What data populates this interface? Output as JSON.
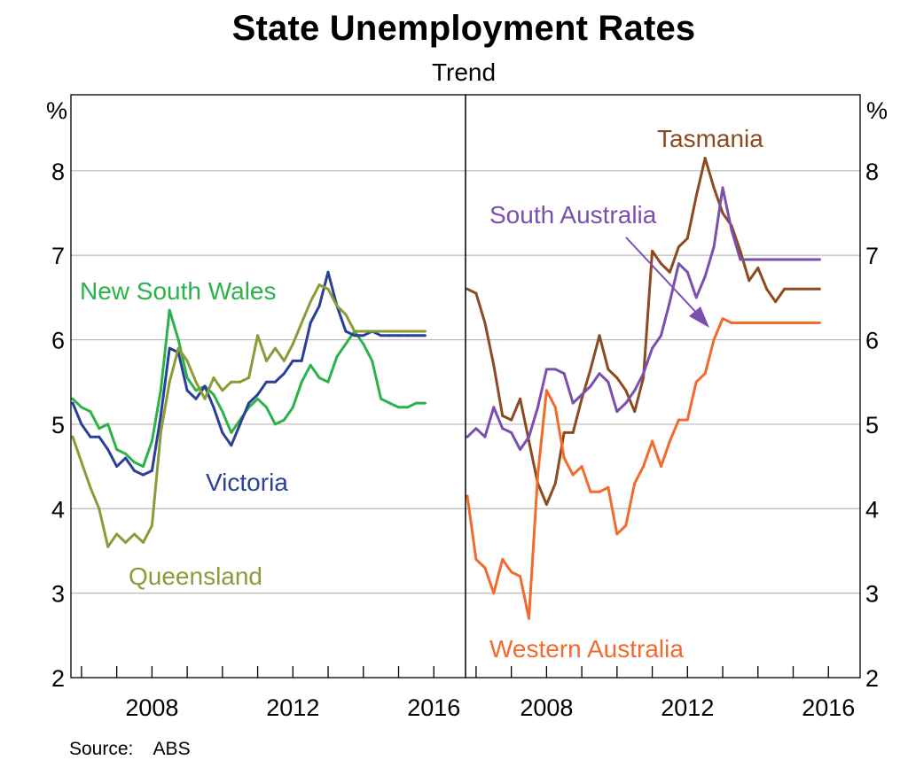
{
  "chart_data": {
    "title": "State Unemployment Rates",
    "subtitle": "Trend",
    "source": "Source:    ABS",
    "type": "line",
    "y_unit": "%",
    "ylim": [
      2,
      8.9
    ],
    "y_ticks": [
      2,
      3,
      4,
      5,
      6,
      7,
      8
    ],
    "x_ticks": [
      2008,
      2012,
      2016
    ],
    "xlim": [
      2005.7,
      2016.9
    ],
    "grid": true,
    "panels": [
      {
        "series": [
          {
            "name": "New South Wales",
            "color": "#2bb34a",
            "x": [
              2005.75,
              2006.0,
              2006.25,
              2006.5,
              2006.75,
              2007.0,
              2007.25,
              2007.5,
              2007.75,
              2008.0,
              2008.25,
              2008.5,
              2008.75,
              2009.0,
              2009.25,
              2009.5,
              2009.75,
              2010.0,
              2010.25,
              2010.5,
              2010.75,
              2011.0,
              2011.25,
              2011.5,
              2011.75,
              2012.0,
              2012.25,
              2012.5,
              2012.75,
              2013.0,
              2013.25,
              2013.5,
              2013.75,
              2014.0,
              2014.25,
              2014.5,
              2014.75,
              2015.0,
              2015.25,
              2015.5,
              2015.75
            ],
            "y": [
              5.3,
              5.2,
              5.15,
              4.95,
              5.0,
              4.7,
              4.65,
              4.55,
              4.5,
              4.8,
              5.4,
              6.35,
              6.0,
              5.55,
              5.4,
              5.45,
              5.35,
              5.15,
              4.9,
              5.05,
              5.2,
              5.3,
              5.2,
              5.0,
              5.05,
              5.2,
              5.5,
              5.7,
              5.55,
              5.5,
              5.8,
              5.95,
              6.1,
              5.95,
              5.75,
              5.3,
              5.25,
              5.2,
              5.2,
              5.25,
              5.25
            ]
          },
          {
            "name": "Victoria",
            "color": "#2a3f98",
            "x": [
              2005.75,
              2006.0,
              2006.25,
              2006.5,
              2006.75,
              2007.0,
              2007.25,
              2007.5,
              2007.75,
              2008.0,
              2008.25,
              2008.5,
              2008.75,
              2009.0,
              2009.25,
              2009.5,
              2009.75,
              2010.0,
              2010.25,
              2010.5,
              2010.75,
              2011.0,
              2011.25,
              2011.5,
              2011.75,
              2012.0,
              2012.25,
              2012.5,
              2012.75,
              2013.0,
              2013.25,
              2013.5,
              2013.75,
              2014.0,
              2014.25,
              2014.5,
              2014.75,
              2015.0,
              2015.25,
              2015.5,
              2015.75
            ],
            "y": [
              5.25,
              5.0,
              4.85,
              4.85,
              4.7,
              4.5,
              4.6,
              4.45,
              4.4,
              4.45,
              5.1,
              5.9,
              5.85,
              5.4,
              5.3,
              5.45,
              5.2,
              4.9,
              4.75,
              5.0,
              5.25,
              5.35,
              5.5,
              5.5,
              5.6,
              5.75,
              5.75,
              6.2,
              6.4,
              6.8,
              6.4,
              6.1,
              6.05,
              6.05,
              6.1,
              6.05,
              6.05,
              6.05,
              6.05,
              6.05,
              6.05
            ]
          },
          {
            "name": "Queensland",
            "color": "#8a9b38",
            "x": [
              2005.75,
              2006.0,
              2006.25,
              2006.5,
              2006.75,
              2007.0,
              2007.25,
              2007.5,
              2007.75,
              2008.0,
              2008.25,
              2008.5,
              2008.75,
              2009.0,
              2009.25,
              2009.5,
              2009.75,
              2010.0,
              2010.25,
              2010.5,
              2010.75,
              2011.0,
              2011.25,
              2011.5,
              2011.75,
              2012.0,
              2012.25,
              2012.5,
              2012.75,
              2013.0,
              2013.25,
              2013.5,
              2013.75,
              2014.0,
              2014.25,
              2014.5,
              2014.75,
              2015.0,
              2015.25,
              2015.5,
              2015.75
            ],
            "y": [
              4.85,
              4.55,
              4.25,
              4.0,
              3.55,
              3.7,
              3.6,
              3.7,
              3.6,
              3.8,
              4.9,
              5.5,
              5.9,
              5.75,
              5.5,
              5.3,
              5.55,
              5.4,
              5.5,
              5.5,
              5.55,
              6.05,
              5.75,
              5.9,
              5.75,
              5.95,
              6.2,
              6.45,
              6.65,
              6.6,
              6.4,
              6.3,
              6.1,
              6.1,
              6.1,
              6.1,
              6.1,
              6.1,
              6.1,
              6.1,
              6.1
            ]
          }
        ]
      },
      {
        "series": [
          {
            "name": "Tasmania",
            "color": "#8b4a1f",
            "x": [
              2005.75,
              2006.0,
              2006.25,
              2006.5,
              2006.75,
              2007.0,
              2007.25,
              2007.5,
              2007.75,
              2008.0,
              2008.25,
              2008.5,
              2008.75,
              2009.0,
              2009.25,
              2009.5,
              2009.75,
              2010.0,
              2010.25,
              2010.5,
              2010.75,
              2011.0,
              2011.25,
              2011.5,
              2011.75,
              2012.0,
              2012.25,
              2012.5,
              2012.75,
              2013.0,
              2013.25,
              2013.5,
              2013.75,
              2014.0,
              2014.25,
              2014.5,
              2014.75,
              2015.0,
              2015.25,
              2015.5,
              2015.75
            ],
            "y": [
              6.6,
              6.55,
              6.2,
              5.7,
              5.1,
              5.05,
              5.3,
              4.8,
              4.3,
              4.05,
              4.3,
              4.9,
              4.9,
              5.3,
              5.65,
              6.05,
              5.65,
              5.55,
              5.4,
              5.15,
              5.55,
              7.05,
              6.9,
              6.8,
              7.1,
              7.2,
              7.7,
              8.15,
              7.8,
              7.5,
              7.35,
              7.05,
              6.7,
              6.85,
              6.6,
              6.45,
              6.6,
              6.6,
              6.6,
              6.6,
              6.6
            ]
          },
          {
            "name": "South Australia",
            "color": "#7a4fb0",
            "x": [
              2005.75,
              2006.0,
              2006.25,
              2006.5,
              2006.75,
              2007.0,
              2007.25,
              2007.5,
              2007.75,
              2008.0,
              2008.25,
              2008.5,
              2008.75,
              2009.0,
              2009.25,
              2009.5,
              2009.75,
              2010.0,
              2010.25,
              2010.5,
              2010.75,
              2011.0,
              2011.25,
              2011.5,
              2011.75,
              2012.0,
              2012.25,
              2012.5,
              2012.75,
              2013.0,
              2013.25,
              2013.5,
              2013.75,
              2014.0,
              2014.25,
              2014.5,
              2014.75,
              2015.0,
              2015.25,
              2015.5,
              2015.75
            ],
            "y": [
              4.85,
              4.95,
              4.85,
              5.2,
              4.95,
              4.9,
              4.7,
              4.85,
              5.2,
              5.65,
              5.65,
              5.6,
              5.25,
              5.35,
              5.45,
              5.6,
              5.5,
              5.15,
              5.25,
              5.4,
              5.6,
              5.9,
              6.05,
              6.45,
              6.9,
              6.8,
              6.5,
              6.75,
              7.1,
              7.8,
              7.3,
              6.95,
              6.95,
              6.95,
              6.95,
              6.95,
              6.95,
              6.95,
              6.95,
              6.95,
              6.95
            ]
          },
          {
            "name": "Western Australia",
            "color": "#f26a2c",
            "x": [
              2005.75,
              2006.0,
              2006.25,
              2006.5,
              2006.75,
              2007.0,
              2007.25,
              2007.5,
              2007.75,
              2008.0,
              2008.25,
              2008.5,
              2008.75,
              2009.0,
              2009.25,
              2009.5,
              2009.75,
              2010.0,
              2010.25,
              2010.5,
              2010.75,
              2011.0,
              2011.25,
              2011.5,
              2011.75,
              2012.0,
              2012.25,
              2012.5,
              2012.75,
              2013.0,
              2013.25,
              2013.5,
              2013.75,
              2014.0,
              2014.25,
              2014.5,
              2014.75,
              2015.0,
              2015.25,
              2015.5,
              2015.75
            ],
            "y": [
              4.15,
              3.4,
              3.3,
              3.0,
              3.4,
              3.25,
              3.2,
              2.7,
              4.4,
              5.4,
              5.2,
              4.6,
              4.4,
              4.5,
              4.2,
              4.2,
              4.25,
              3.7,
              3.8,
              4.3,
              4.5,
              4.8,
              4.5,
              4.8,
              5.05,
              5.05,
              5.5,
              5.6,
              6.0,
              6.25,
              6.2,
              6.2,
              6.2,
              6.2,
              6.2,
              6.2,
              6.2,
              6.2,
              6.2,
              6.2,
              6.2
            ]
          }
        ]
      }
    ]
  }
}
